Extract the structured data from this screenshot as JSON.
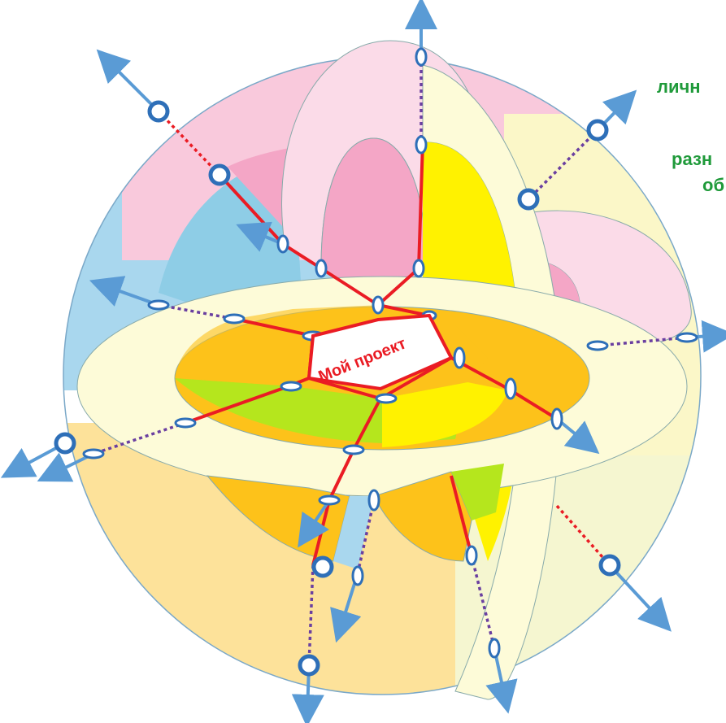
{
  "center_label": "Мой проект",
  "side_text": [
    "личн",
    "разн",
    "об"
  ],
  "colors": {
    "sphere_blue": "#a9d7ee",
    "sphere_pink": "#f9c9dc",
    "sphere_cream": "#fbf7c8",
    "sphere_peach": "#fde29a",
    "band_light": "#fdfbd8",
    "orange": "#fdc21a",
    "lime": "#b5e61d",
    "yellow": "#fff200",
    "pink": "#f7a8c8",
    "path_red": "#ea1c24",
    "dotted_purple": "#6a3fa0",
    "arrow_blue": "#5a9bd5",
    "node_ring": "#2e6fb8",
    "side_text": "#1f9a3a"
  }
}
